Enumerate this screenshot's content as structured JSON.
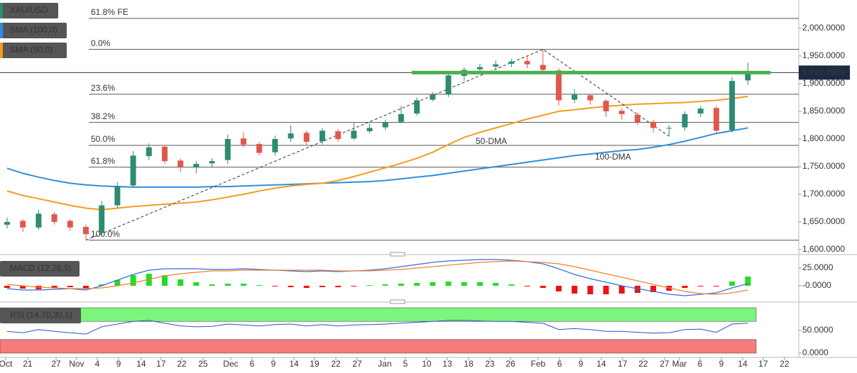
{
  "chart_data": [
    {
      "type": "candlestick",
      "xlim": [
        -0.45,
        50.23
      ],
      "xticks": [
        {
          "value": -0.09,
          "label": "Oct"
        },
        {
          "value": 1.31,
          "label": "21"
        },
        {
          "value": 3.11,
          "label": "27"
        },
        {
          "value": 4.41,
          "label": "Nov"
        },
        {
          "value": 5.72,
          "label": "4"
        },
        {
          "value": 7.07,
          "label": "9"
        },
        {
          "value": 8.51,
          "label": "14"
        },
        {
          "value": 9.77,
          "label": "17"
        },
        {
          "value": 11.08,
          "label": "22"
        },
        {
          "value": 12.43,
          "label": "25"
        },
        {
          "value": 14.19,
          "label": "Dec"
        },
        {
          "value": 15.54,
          "label": "6"
        },
        {
          "value": 16.89,
          "label": "9"
        },
        {
          "value": 18.2,
          "label": "14"
        },
        {
          "value": 19.5,
          "label": "19"
        },
        {
          "value": 20.86,
          "label": "22"
        },
        {
          "value": 22.21,
          "label": "27"
        },
        {
          "value": 23.96,
          "label": "Jan"
        },
        {
          "value": 25.27,
          "label": "5"
        },
        {
          "value": 26.62,
          "label": "10"
        },
        {
          "value": 27.93,
          "label": "13"
        },
        {
          "value": 29.28,
          "label": "18"
        },
        {
          "value": 30.63,
          "label": "23"
        },
        {
          "value": 31.94,
          "label": "26"
        },
        {
          "value": 33.69,
          "label": "Feb"
        },
        {
          "value": 35.05,
          "label": "6"
        },
        {
          "value": 36.4,
          "label": "9"
        },
        {
          "value": 37.7,
          "label": "14"
        },
        {
          "value": 39.05,
          "label": "17"
        },
        {
          "value": 40.36,
          "label": "22"
        },
        {
          "value": 41.71,
          "label": "27"
        },
        {
          "value": 42.66,
          "label": "Mar"
        },
        {
          "value": 43.96,
          "label": "6"
        },
        {
          "value": 45.32,
          "label": "9"
        },
        {
          "value": 46.67,
          "label": "14"
        },
        {
          "value": 47.97,
          "label": "17"
        },
        {
          "value": 49.32,
          "label": "22"
        }
      ],
      "ylim": [
        1592.3,
        2051.3
      ],
      "yticks": [
        {
          "value": 1600,
          "label": "1,600.0000"
        },
        {
          "value": 1650,
          "label": "1,650.0000"
        },
        {
          "value": 1700,
          "label": "1,700.0000"
        },
        {
          "value": 1750,
          "label": "1,750.0000"
        },
        {
          "value": 1800,
          "label": "1,800.0000"
        },
        {
          "value": 1850,
          "label": "1,850.0000"
        },
        {
          "value": 1900,
          "label": "1,900.0000"
        },
        {
          "value": 1950,
          "label": "1,950.0000"
        },
        {
          "value": 2000,
          "label": "2,000.0000"
        }
      ],
      "series": [
        {
          "name": "XAU/USD",
          "color": "#2e8b72",
          "down_color": "#e0584d",
          "open": [
            1645,
            1652,
            1640,
            1664,
            1652,
            1641,
            1630,
            1680,
            1716,
            1769,
            1786,
            1761,
            1749,
            1756,
            1762,
            1801,
            1791,
            1776,
            1801,
            1811,
            1796,
            1814,
            1801,
            1814,
            1821,
            1831,
            1846,
            1871,
            1881,
            1914,
            1926,
            1931,
            1936,
            1941,
            1934,
            1924,
            1871,
            1879,
            1869,
            1851,
            1844,
            1831,
            1819,
            1821,
            1846,
            1856,
            1816,
            1906
          ],
          "high": [
            1658,
            1655,
            1672,
            1668,
            1655,
            1645,
            1688,
            1722,
            1778,
            1792,
            1788,
            1765,
            1760,
            1765,
            1808,
            1812,
            1795,
            1806,
            1825,
            1815,
            1820,
            1818,
            1830,
            1828,
            1835,
            1860,
            1875,
            1885,
            1920,
            1930,
            1936,
            1942,
            1945,
            1950,
            1962,
            1928,
            1890,
            1882,
            1872,
            1856,
            1848,
            1835,
            1825,
            1850,
            1860,
            1860,
            1912,
            1938
          ],
          "low": [
            1638,
            1632,
            1636,
            1645,
            1634,
            1618,
            1626,
            1675,
            1712,
            1762,
            1755,
            1740,
            1738,
            1748,
            1755,
            1785,
            1770,
            1770,
            1795,
            1788,
            1790,
            1795,
            1798,
            1810,
            1816,
            1828,
            1842,
            1868,
            1876,
            1905,
            1920,
            1925,
            1930,
            1928,
            1920,
            1860,
            1865,
            1862,
            1840,
            1835,
            1825,
            1812,
            1805,
            1815,
            1840,
            1810,
            1812,
            1898
          ],
          "close": [
            1650,
            1640,
            1665,
            1650,
            1640,
            1628,
            1680,
            1715,
            1770,
            1785,
            1760,
            1750,
            1755,
            1760,
            1800,
            1790,
            1775,
            1800,
            1810,
            1795,
            1815,
            1800,
            1815,
            1820,
            1830,
            1845,
            1870,
            1880,
            1915,
            1925,
            1930,
            1935,
            1940,
            1935,
            1925,
            1870,
            1880,
            1870,
            1850,
            1845,
            1830,
            1820,
            1820,
            1845,
            1855,
            1815,
            1905,
            1920
          ]
        },
        {
          "name": "SMA (100,0)",
          "color": "#2f8fdd",
          "values": [
            1747,
            1738,
            1731,
            1725,
            1720,
            1717,
            1715,
            1714,
            1713,
            1713,
            1713,
            1713,
            1713,
            1714,
            1714,
            1715,
            1716,
            1717,
            1718,
            1719,
            1720,
            1721,
            1722,
            1723,
            1725,
            1728,
            1731,
            1734,
            1738,
            1742,
            1746,
            1750,
            1754,
            1758,
            1762,
            1766,
            1770,
            1773,
            1776,
            1779,
            1781,
            1785,
            1790,
            1796,
            1803,
            1810,
            1815,
            1820
          ]
        },
        {
          "name": "SMA (50,0)",
          "color": "#f39c1f",
          "values": [
            1706,
            1698,
            1692,
            1686,
            1680,
            1675,
            1672,
            1675,
            1678,
            1680,
            1682,
            1684,
            1686,
            1690,
            1695,
            1700,
            1706,
            1711,
            1715,
            1718,
            1720,
            1725,
            1732,
            1740,
            1748,
            1756,
            1765,
            1776,
            1790,
            1803,
            1812,
            1820,
            1828,
            1836,
            1843,
            1850,
            1853,
            1856,
            1859,
            1861,
            1863,
            1864,
            1865,
            1866,
            1868,
            1870,
            1873,
            1877
          ]
        }
      ],
      "fib_levels": [
        {
          "value": 2018,
          "label": "61.8% FE"
        },
        {
          "value": 1962,
          "label": "0.0%"
        },
        {
          "value": 1881,
          "label": "23.6%"
        },
        {
          "value": 1830,
          "label": "38.2%"
        },
        {
          "value": 1788.5,
          "label": "50.0%"
        },
        {
          "value": 1749,
          "label": "61.8%"
        },
        {
          "value": 1617,
          "label": "100.0%"
        }
      ],
      "resistance": 1920,
      "last_price": {
        "value": 1920.06,
        "label": "1,920.0600"
      },
      "annotations": [
        "50-DMA",
        "100-DMA"
      ]
    },
    {
      "type": "macd",
      "title": "MACD (12,26,9)",
      "ylim": [
        -21,
        41
      ],
      "yticks": [
        {
          "value": 25,
          "label": "25.0000"
        },
        {
          "value": 0,
          "label": "-0.0000"
        }
      ],
      "histogram": {
        "color": "#22dd22",
        "down_color": "#ee1111",
        "values": [
          -3,
          -4,
          -5,
          -3,
          -2,
          -4,
          2,
          8,
          15,
          17,
          15,
          9,
          5,
          2,
          3,
          3,
          1,
          -1,
          -2,
          -3,
          -2,
          -2,
          -1,
          1,
          2,
          3,
          4,
          5,
          6,
          5,
          5,
          4,
          2,
          -1,
          -3,
          -8,
          -11,
          -12,
          -12,
          -11,
          -10,
          -9,
          -7,
          -3,
          -1,
          -1,
          6,
          13
        ]
      },
      "macd": {
        "color": "#2f6fdd",
        "values": [
          -4,
          -6,
          -6,
          -5,
          -4,
          -6,
          0,
          8,
          16,
          22,
          24,
          24,
          24,
          23,
          23,
          24,
          23,
          22,
          21,
          20,
          21,
          20,
          21,
          22,
          24,
          27,
          30,
          33,
          35,
          36,
          37,
          37,
          36,
          34,
          31,
          24,
          16,
          10,
          5,
          0,
          -4,
          -8,
          -12,
          -14,
          -12,
          -10,
          -3,
          3
        ]
      },
      "signal": {
        "color": "#f08030",
        "values": [
          2,
          0,
          -2,
          -3,
          -4,
          -4,
          -3,
          0,
          4,
          9,
          14,
          17,
          19,
          21,
          21,
          22,
          22,
          22,
          22,
          22,
          22,
          21,
          21,
          21,
          22,
          23,
          25,
          27,
          29,
          31,
          33,
          34,
          35,
          34,
          33,
          31,
          27,
          22,
          17,
          12,
          7,
          2,
          -3,
          -8,
          -11,
          -12,
          -10,
          -6
        ]
      }
    },
    {
      "type": "line",
      "title": "RSI (14,70,30,1)",
      "ylim": [
        -9.4,
        109.4
      ],
      "yticks": [
        {
          "value": 50,
          "label": "50.0000"
        },
        {
          "value": 0,
          "label": "0.0000"
        }
      ],
      "color": "#3050c0",
      "bands": [
        {
          "from": 70,
          "to": 100,
          "color": "#7cf57c"
        },
        {
          "from": 0,
          "to": 30,
          "color": "#f77b7b"
        }
      ],
      "values": [
        48,
        45,
        52,
        48,
        45,
        42,
        58,
        64,
        70,
        72,
        66,
        60,
        58,
        59,
        64,
        62,
        60,
        63,
        64,
        60,
        63,
        60,
        62,
        63,
        64,
        66,
        68,
        70,
        72,
        72,
        71,
        70,
        70,
        68,
        66,
        52,
        54,
        52,
        48,
        48,
        46,
        44,
        45,
        52,
        53,
        46,
        64,
        66
      ]
    }
  ]
}
